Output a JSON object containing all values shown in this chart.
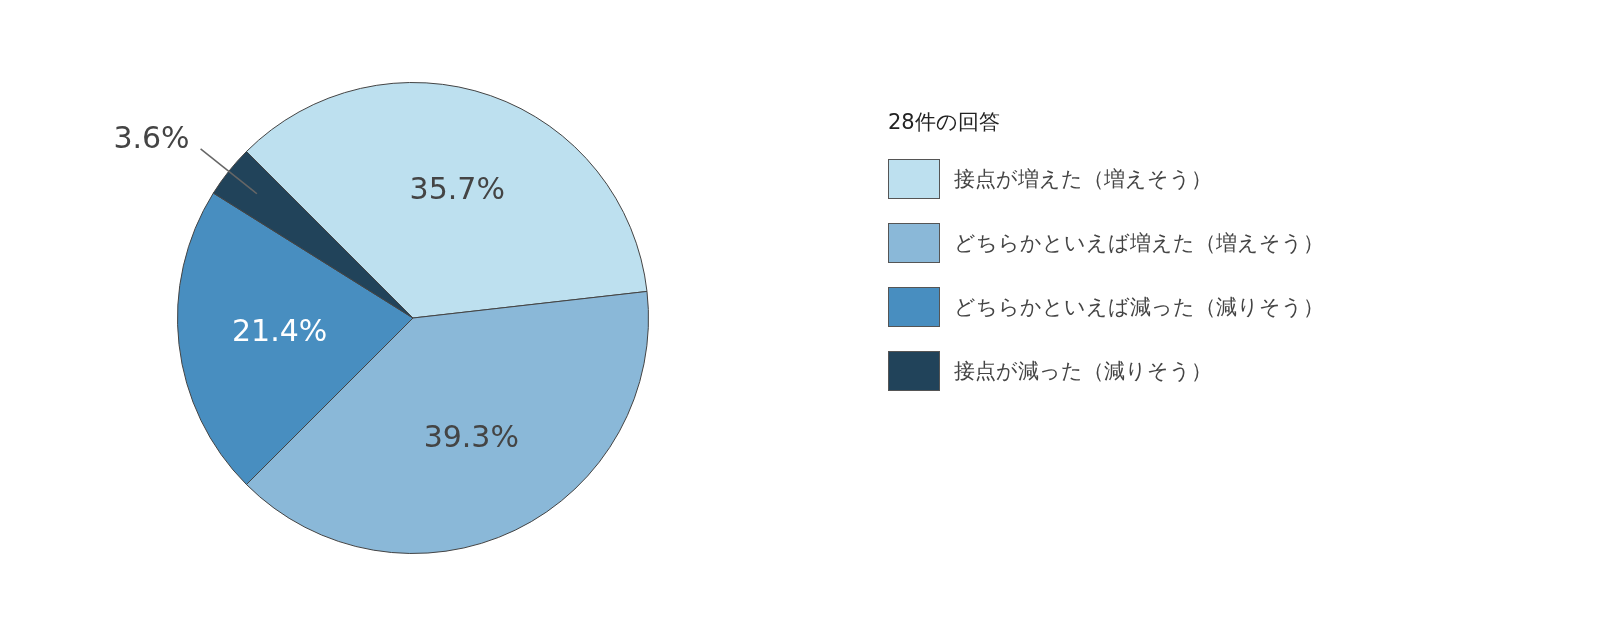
{
  "chart_data": {
    "type": "pie",
    "legend_title": "28件の回答",
    "categories": [
      "接点が増えた（増えそう）",
      "どちらかといえば増えた（増えそう）",
      "どちらかといえば減った（減りそう）",
      "接点が減った（減りそう）"
    ],
    "values": [
      35.7,
      39.3,
      21.4,
      3.6
    ],
    "colors": [
      "#bde0ef",
      "#8ab8d8",
      "#488ec0",
      "#21435a"
    ],
    "value_labels": [
      "35.7%",
      "39.3%",
      "21.4%",
      "3.6%"
    ],
    "legend": "right"
  }
}
